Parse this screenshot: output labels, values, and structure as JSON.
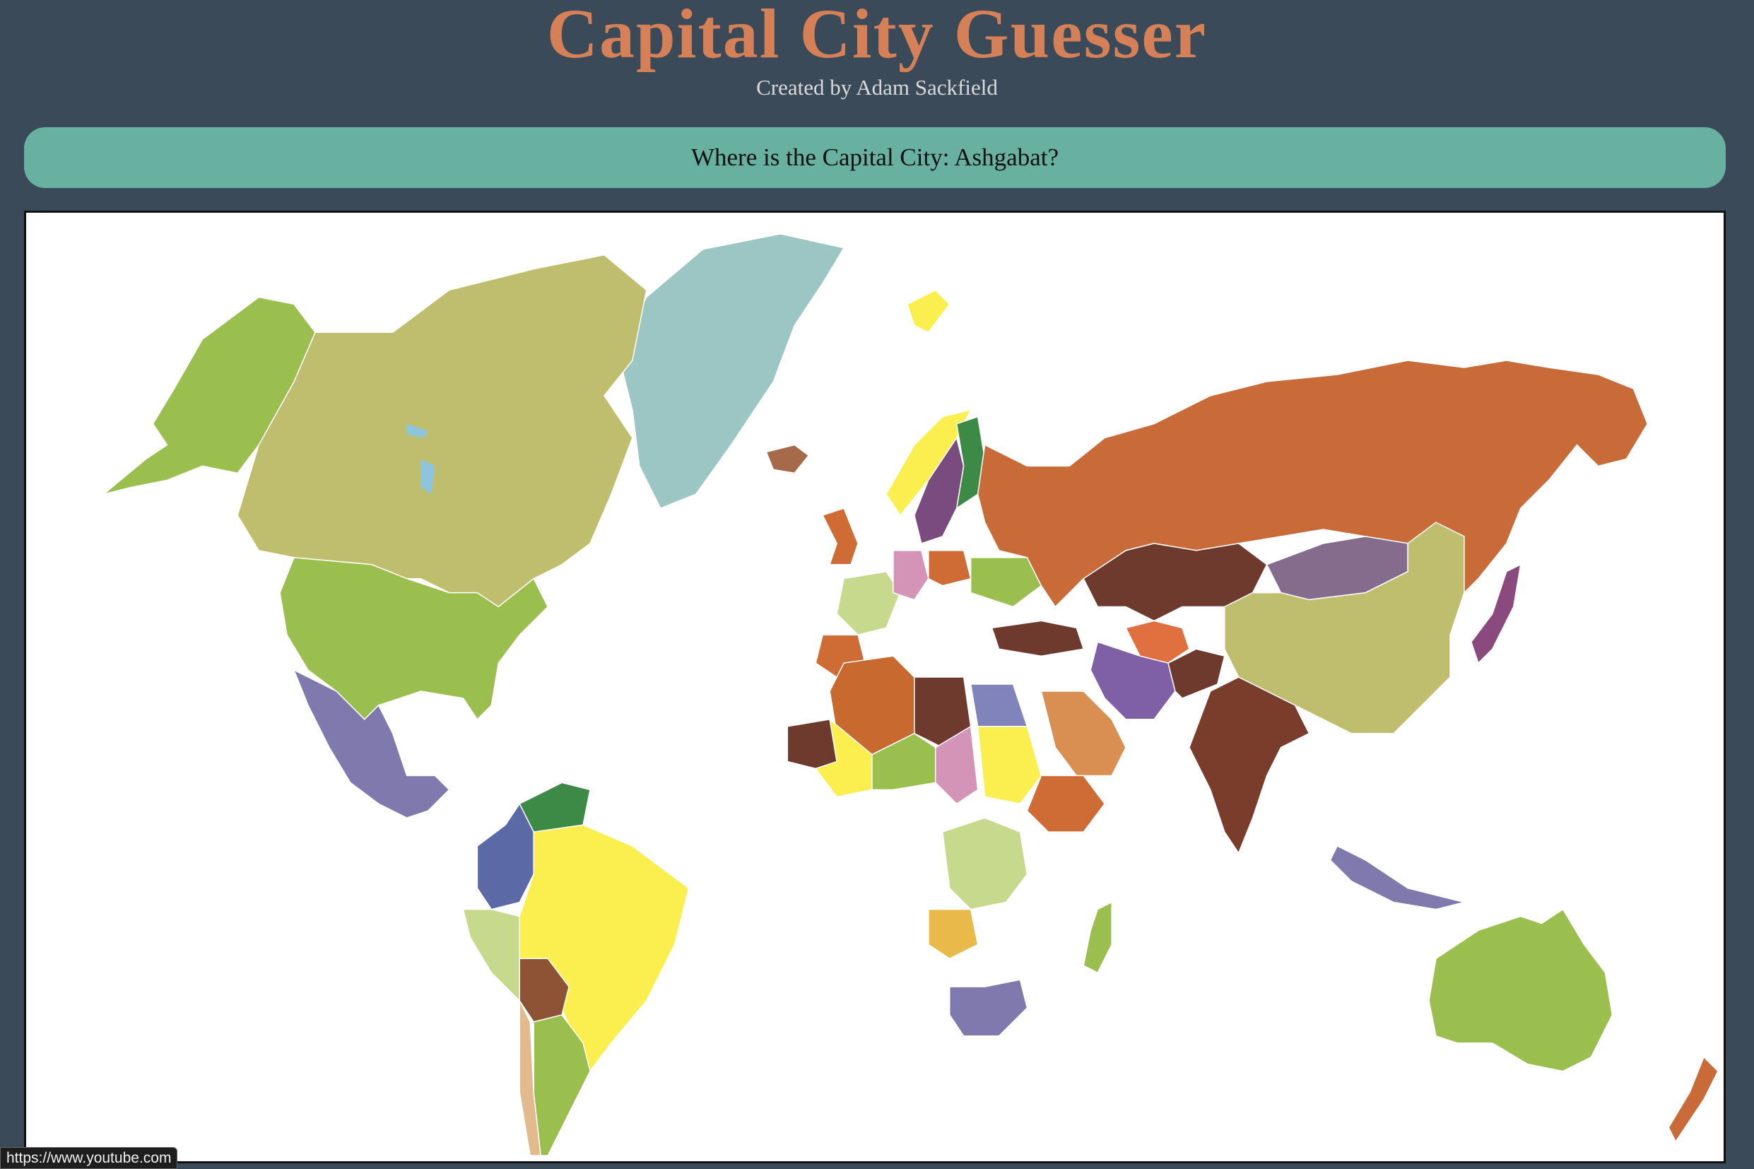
{
  "header": {
    "title": "Capital City Guesser",
    "subtitle": "Created by Adam Sackfield"
  },
  "question": {
    "prompt": "Where is the Capital City: Ashgabat?"
  },
  "map": {
    "background": "#ffffff",
    "countries": [
      {
        "name": "alaska",
        "color": "#9bbf4f"
      },
      {
        "name": "canada",
        "color": "#bfbd6e"
      },
      {
        "name": "greenland",
        "color": "#9cc6c3"
      },
      {
        "name": "usa",
        "color": "#9bbf4f"
      },
      {
        "name": "mexico",
        "color": "#7f79ad"
      },
      {
        "name": "colombia",
        "color": "#5b6aa6"
      },
      {
        "name": "venezuela",
        "color": "#3c8a45"
      },
      {
        "name": "brazil",
        "color": "#fbef4f"
      },
      {
        "name": "peru",
        "color": "#c7d98c"
      },
      {
        "name": "bolivia",
        "color": "#8e5234"
      },
      {
        "name": "argentina",
        "color": "#9bbf4f"
      },
      {
        "name": "chile",
        "color": "#e3b98e"
      },
      {
        "name": "russia",
        "color": "#c86b38"
      },
      {
        "name": "kazakhstan",
        "color": "#6f3a2e"
      },
      {
        "name": "mongolia",
        "color": "#866c8c"
      },
      {
        "name": "china",
        "color": "#bfbd6e"
      },
      {
        "name": "india",
        "color": "#7a3d2b"
      },
      {
        "name": "iran",
        "color": "#7f5fa6"
      },
      {
        "name": "saudi-arabia",
        "color": "#d98f52"
      },
      {
        "name": "turkmenistan",
        "color": "#e07040"
      },
      {
        "name": "afghanistan",
        "color": "#6f3a2e"
      },
      {
        "name": "turkey",
        "color": "#6f3a2e"
      },
      {
        "name": "japan",
        "color": "#8a4a7e"
      },
      {
        "name": "indonesia",
        "color": "#7f79ad"
      },
      {
        "name": "australia",
        "color": "#9bbf4f"
      },
      {
        "name": "new-zealand",
        "color": "#c86b38"
      },
      {
        "name": "algeria",
        "color": "#c8692f"
      },
      {
        "name": "libya",
        "color": "#6f3a2e"
      },
      {
        "name": "egypt",
        "color": "#8184ba"
      },
      {
        "name": "sudan",
        "color": "#fbef4f"
      },
      {
        "name": "chad",
        "color": "#d494b7"
      },
      {
        "name": "niger",
        "color": "#9bbf4f"
      },
      {
        "name": "mali",
        "color": "#fbef4f"
      },
      {
        "name": "mauritania",
        "color": "#6f3a2e"
      },
      {
        "name": "ethiopia",
        "color": "#cf6b35"
      },
      {
        "name": "drc",
        "color": "#c7d98c"
      },
      {
        "name": "angola",
        "color": "#e9b94a"
      },
      {
        "name": "south-africa",
        "color": "#7f79ad"
      },
      {
        "name": "madagascar",
        "color": "#9bbf4f"
      },
      {
        "name": "sweden",
        "color": "#7a4b7e"
      },
      {
        "name": "finland",
        "color": "#3c8a45"
      },
      {
        "name": "norway",
        "color": "#fbef4f"
      },
      {
        "name": "uk",
        "color": "#cf6b35"
      },
      {
        "name": "france",
        "color": "#c7d98c"
      },
      {
        "name": "spain",
        "color": "#cf6b35"
      },
      {
        "name": "germany",
        "color": "#d494b7"
      },
      {
        "name": "poland",
        "color": "#cf6b35"
      },
      {
        "name": "ukraine",
        "color": "#9bbf4f"
      },
      {
        "name": "iceland",
        "color": "#a66a4a"
      },
      {
        "name": "svalbard",
        "color": "#fbef4f"
      }
    ]
  },
  "status_bar": {
    "url": "https://www.youtube.com"
  }
}
